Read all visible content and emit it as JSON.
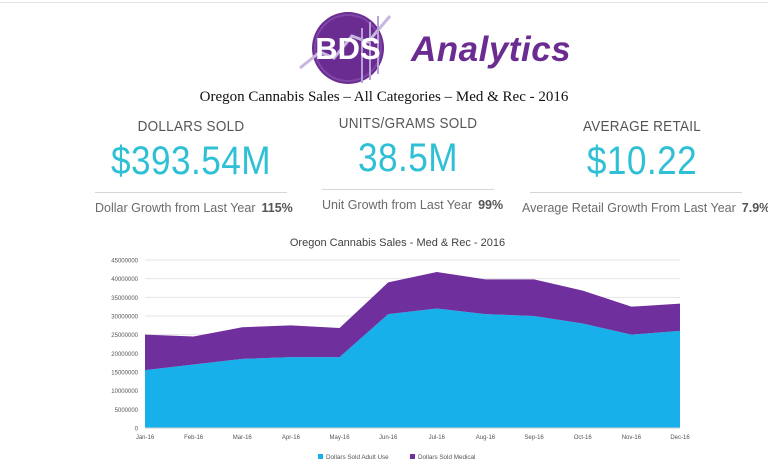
{
  "brand": {
    "word_bds": "BDS",
    "word_analytics": "Analytics",
    "purple": "#6a2c91",
    "cyan": "#2fc0d6"
  },
  "headline": "Oregon Cannabis Sales – All Categories – Med & Rec - 2016",
  "kpis": [
    {
      "label": "DOLLARS SOLD",
      "value": "$393.54M",
      "growth_label": "Dollar Growth from Last Year",
      "growth_value": "115%"
    },
    {
      "label": "UNITS/GRAMS SOLD",
      "value": "38.5M",
      "growth_label": "Unit Growth from Last Year",
      "growth_value": "99%"
    },
    {
      "label": "AVERAGE RETAIL",
      "value": "$10.22",
      "growth_label": "Average Retail Growth From Last Year",
      "growth_value": "7.9%"
    }
  ],
  "chart_data": {
    "type": "area",
    "stacked": true,
    "title": "Oregon Cannabis Sales - Med & Rec - 2016",
    "categories": [
      "Jan-16",
      "Feb-16",
      "Mar-16",
      "Apr-16",
      "May-16",
      "Jun-16",
      "Jul-16",
      "Aug-16",
      "Sep-16",
      "Oct-16",
      "Nov-16",
      "Dec-16"
    ],
    "series": [
      {
        "name": "Dollars Sold Adult Use",
        "color": "#17b0ea",
        "values": [
          15500000,
          17000000,
          18500000,
          19000000,
          19000000,
          30500000,
          32000000,
          30500000,
          30000000,
          28000000,
          25000000,
          26000000
        ]
      },
      {
        "name": "Dollars Sold Medical",
        "color": "#6f2f9c",
        "values": [
          9500000,
          7500000,
          8500000,
          8500000,
          7800000,
          8500000,
          9800000,
          9300000,
          9800000,
          8800000,
          7500000,
          7300000
        ]
      }
    ],
    "ylim": [
      0,
      45000000
    ],
    "yticks": [
      "0",
      "5000000",
      "10000000",
      "15000000",
      "20000000",
      "25000000",
      "30000000",
      "35000000",
      "40000000",
      "45000000"
    ],
    "grid": true,
    "legend_position": "bottom"
  }
}
